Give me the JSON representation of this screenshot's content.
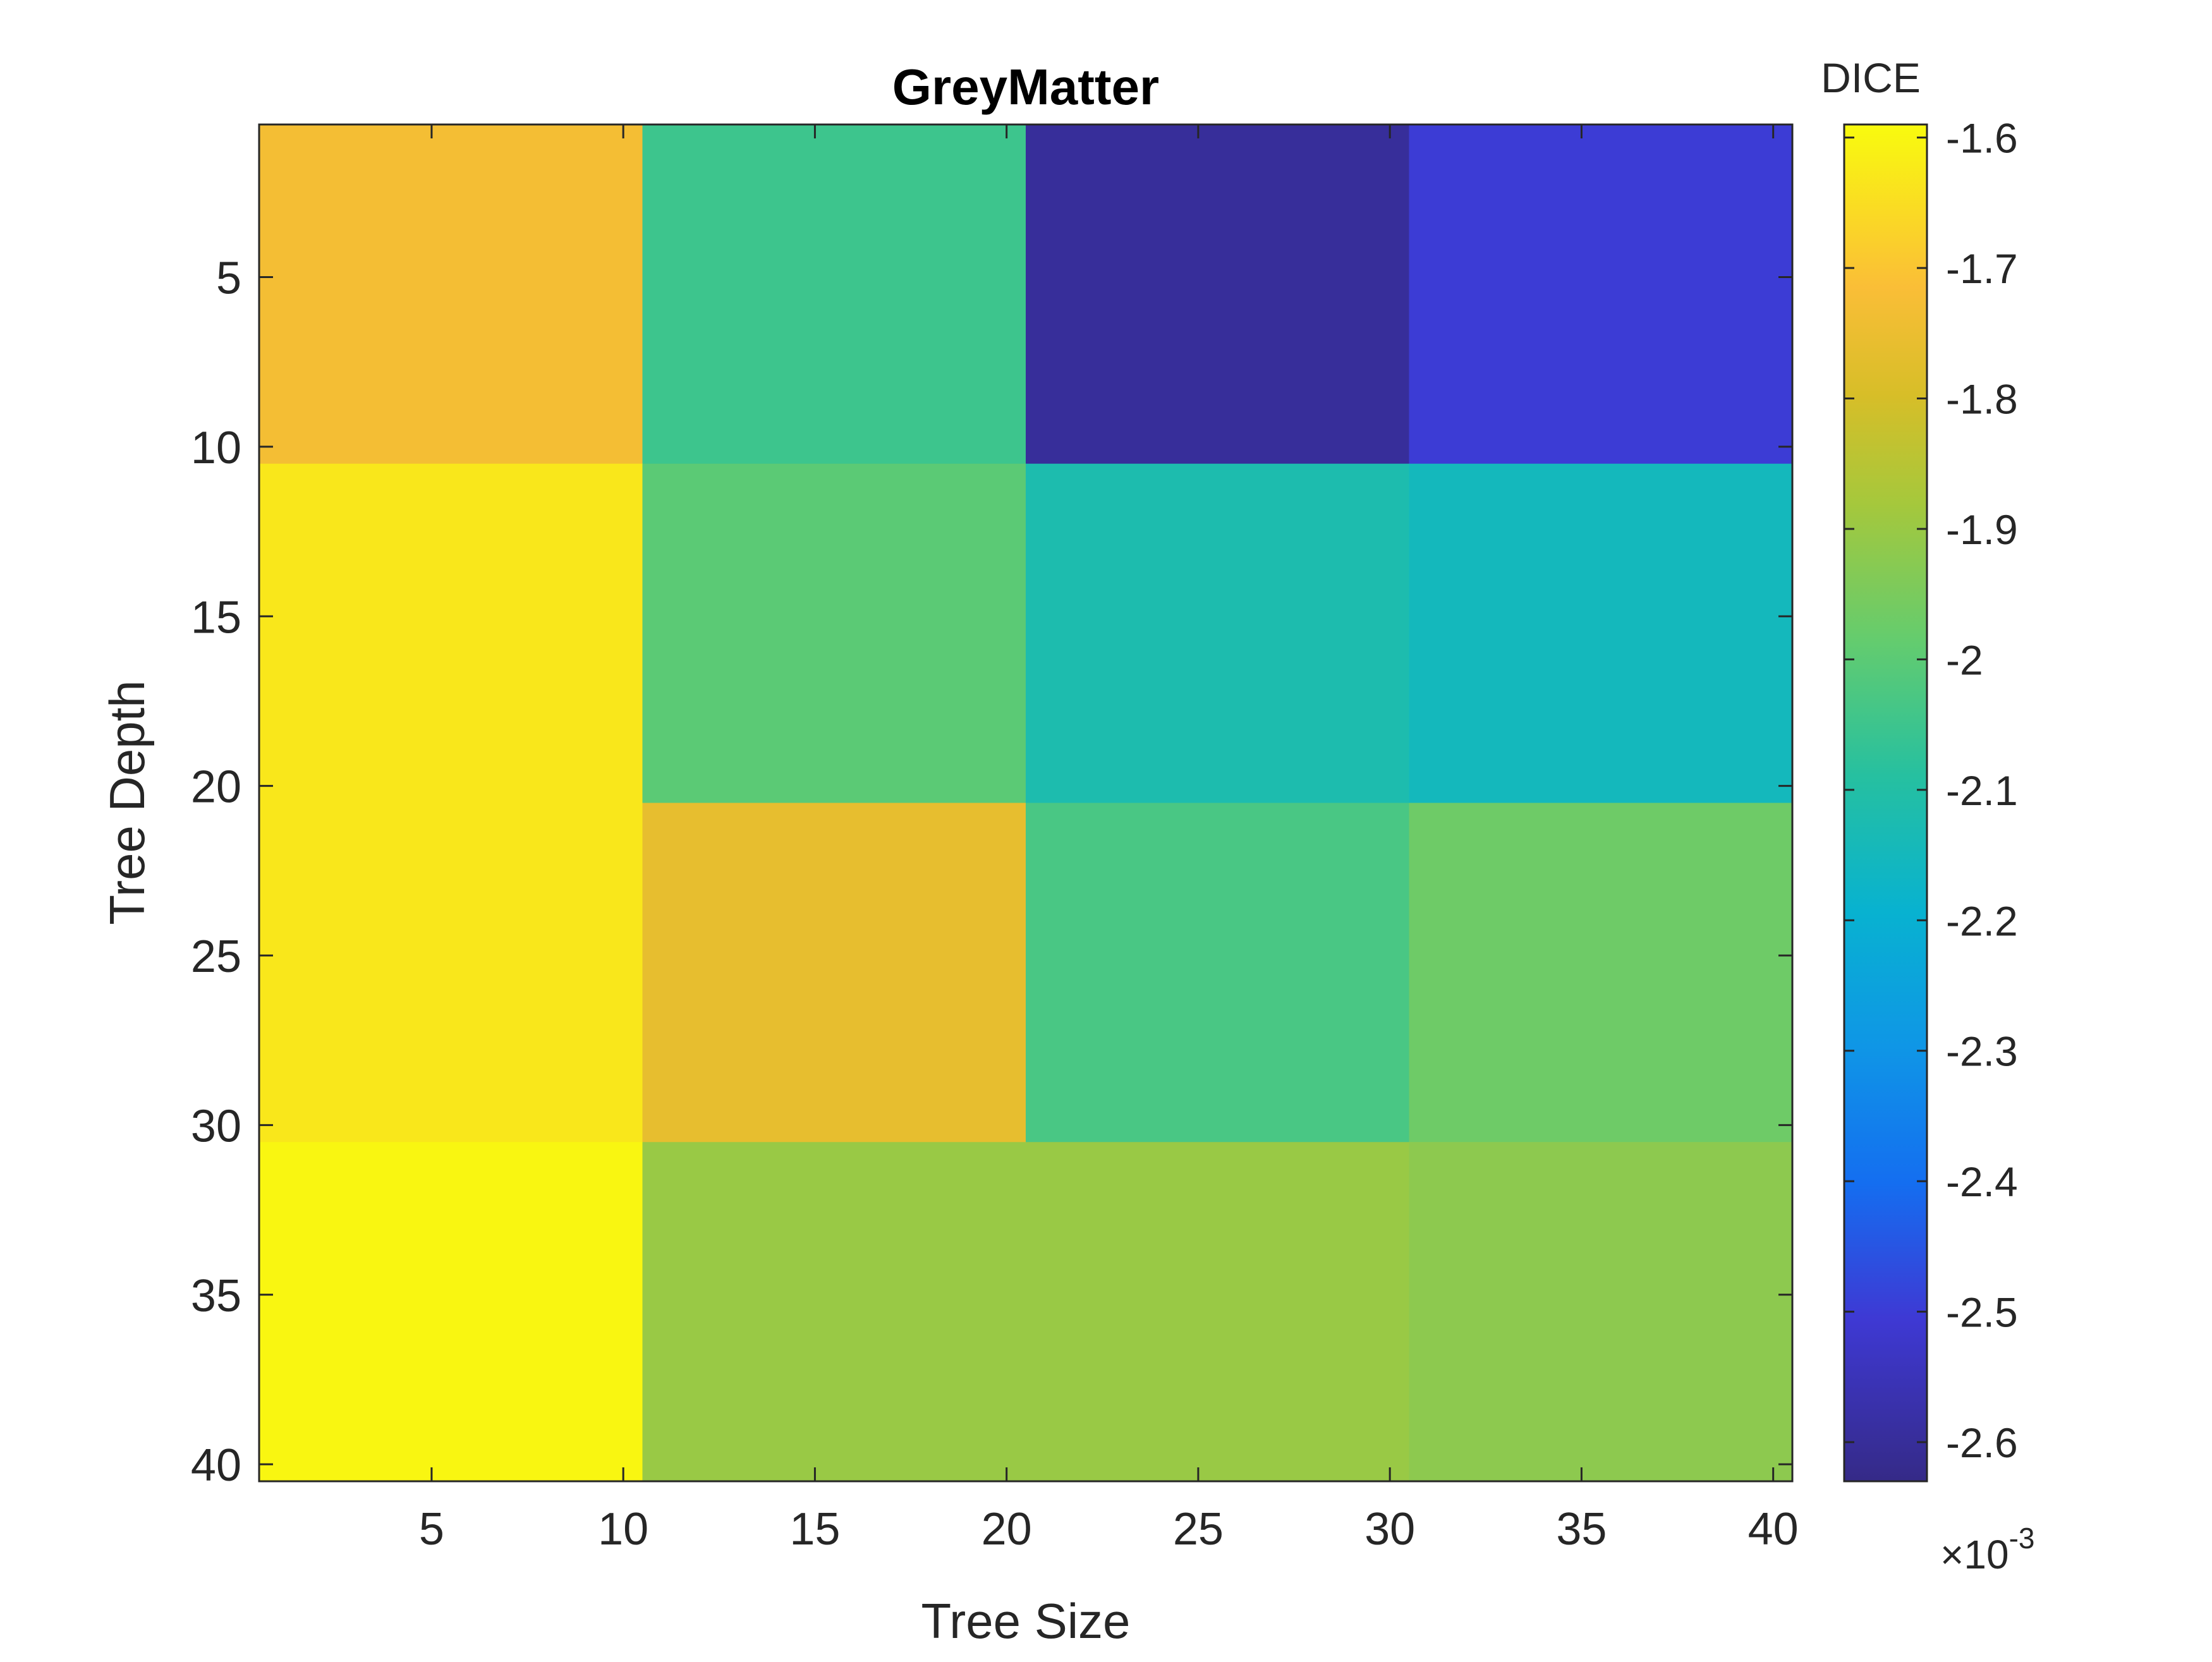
{
  "chart_data": {
    "type": "heatmap",
    "title": "GreyMatter",
    "xlabel": "Tree Size",
    "ylabel": "Tree Depth",
    "x_ticks": [
      5,
      10,
      15,
      20,
      25,
      30,
      35,
      40
    ],
    "y_ticks": [
      5,
      10,
      15,
      20,
      25,
      30,
      35,
      40
    ],
    "xlim": [
      0.5,
      40.5
    ],
    "ylim": [
      0.5,
      40.5
    ],
    "y_direction": "reverse",
    "cells": [
      {
        "x": [
          0.5,
          10.5
        ],
        "y": [
          0.5,
          10.5
        ],
        "value": -0.00173
      },
      {
        "x": [
          10.5,
          20.5
        ],
        "y": [
          0.5,
          10.5
        ],
        "value": -0.00205
      },
      {
        "x": [
          20.5,
          30.5
        ],
        "y": [
          0.5,
          10.5
        ],
        "value": -0.0026
      },
      {
        "x": [
          30.5,
          40.5
        ],
        "y": [
          0.5,
          10.5
        ],
        "value": -0.0025
      },
      {
        "x": [
          0.5,
          10.5
        ],
        "y": [
          10.5,
          20.5
        ],
        "value": -0.00163
      },
      {
        "x": [
          10.5,
          20.5
        ],
        "y": [
          10.5,
          20.5
        ],
        "value": -0.002
      },
      {
        "x": [
          20.5,
          30.5
        ],
        "y": [
          10.5,
          20.5
        ],
        "value": -0.00212
      },
      {
        "x": [
          30.5,
          40.5
        ],
        "y": [
          10.5,
          20.5
        ],
        "value": -0.00215
      },
      {
        "x": [
          0.5,
          10.5
        ],
        "y": [
          20.5,
          30.5
        ],
        "value": -0.00163
      },
      {
        "x": [
          10.5,
          20.5
        ],
        "y": [
          20.5,
          30.5
        ],
        "value": -0.00176
      },
      {
        "x": [
          20.5,
          30.5
        ],
        "y": [
          20.5,
          30.5
        ],
        "value": -0.00203
      },
      {
        "x": [
          30.5,
          40.5
        ],
        "y": [
          20.5,
          30.5
        ],
        "value": -0.00197
      },
      {
        "x": [
          0.5,
          10.5
        ],
        "y": [
          30.5,
          40.5
        ],
        "value": -0.0016
      },
      {
        "x": [
          10.5,
          20.5
        ],
        "y": [
          30.5,
          40.5
        ],
        "value": -0.0019
      },
      {
        "x": [
          20.5,
          30.5
        ],
        "y": [
          30.5,
          40.5
        ],
        "value": -0.0019
      },
      {
        "x": [
          30.5,
          40.5
        ],
        "y": [
          30.5,
          40.5
        ],
        "value": -0.00192
      }
    ],
    "colorbar": {
      "label": "DICE",
      "exponent_label": "×10",
      "exponent_power": "-3",
      "range": [
        -2.63,
        -1.59
      ],
      "tick_values": [
        -1.6,
        -1.7,
        -1.8,
        -1.9,
        -2.0,
        -2.1,
        -2.2,
        -2.3,
        -2.4,
        -2.5,
        -2.6
      ],
      "tick_labels": [
        "-1.6",
        "-1.7",
        "-1.8",
        "-1.9",
        "-2",
        "-2.1",
        "-2.2",
        "-2.3",
        "-2.4",
        "-2.5",
        "-2.6"
      ],
      "colormap": "parula"
    },
    "grid": false
  }
}
